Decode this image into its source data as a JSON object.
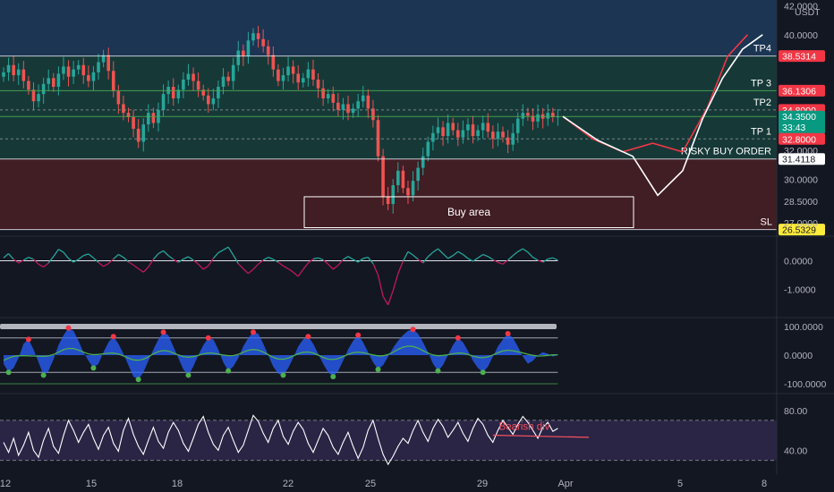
{
  "symbol_quote": "USDT",
  "chart_data": [
    {
      "type": "candlestick",
      "ylim": [
        26.2,
        42.4
      ],
      "ticks": [
        "42.0000",
        "40.0000",
        "30.0000",
        "28.5000",
        "27.0000"
      ],
      "tick_values": [
        42.0,
        40.0,
        30.0,
        28.5,
        27.0
      ],
      "x_labels": [
        "12",
        "15",
        "18",
        "22",
        "25",
        "29",
        "Apr",
        "5",
        "8"
      ],
      "zones": [
        {
          "name": "upper-zone",
          "from": 38.53,
          "to": 42.4,
          "color": "#1f3b5c"
        },
        {
          "name": "profit-zone",
          "from": 31.41,
          "to": 38.53,
          "color": "#17403c"
        },
        {
          "name": "loss-zone",
          "from": 26.53,
          "to": 31.41,
          "color": "#4a1e24"
        }
      ],
      "levels": [
        {
          "label": "TP4",
          "value": 38.5314,
          "tag": "38.5314",
          "tag_color": "#f23645",
          "line": "#e0e3eb"
        },
        {
          "label": "TP 3",
          "value": 36.1306,
          "tag": "36.1306",
          "tag_color": "#f23645",
          "line": "#4caf50"
        },
        {
          "label": "TP2",
          "value": 34.8,
          "tag": "34.8000",
          "tag_color": "#f23645",
          "line": "#8f8f8f"
        },
        {
          "label": "",
          "value": 34.35,
          "tag": "34.3500",
          "tag2": "33:43",
          "tag_color": "#089981",
          "line": "#4caf50"
        },
        {
          "label": "TP 1",
          "value": 32.8,
          "tag": "32.8000",
          "tag_color": "#f23645",
          "line": "#8f8f8f"
        },
        {
          "label": "RISKY BUY ORDER",
          "value": 31.4118,
          "tag": "31.4118",
          "tag_color": "#ffffff",
          "line": "#e0e3eb"
        },
        {
          "label": "SL",
          "value": 26.5329,
          "tag": "26.5329",
          "tag_color": "#ffeb3b",
          "line": "#e0e3eb"
        }
      ],
      "plain_ticks": [
        "32.0000"
      ],
      "buy_area": {
        "label": "Buy area",
        "from": 27.9,
        "to": 28.8
      },
      "close_prices": [
        37.4,
        37.9,
        37.2,
        37.6,
        36.8,
        36.2,
        35.4,
        35.9,
        36.6,
        37.0,
        36.4,
        37.3,
        37.8,
        37.1,
        37.6,
        37.9,
        37.2,
        36.8,
        37.4,
        38.1,
        38.6,
        37.5,
        36.1,
        35.2,
        34.6,
        34.3,
        33.5,
        32.6,
        33.8,
        34.6,
        33.9,
        34.8,
        35.9,
        36.4,
        35.6,
        36.2,
        36.9,
        37.3,
        36.8,
        36.2,
        35.8,
        35.2,
        35.6,
        36.4,
        37.1,
        36.8,
        37.9,
        38.9,
        38.5,
        39.6,
        40.1,
        39.7,
        39.2,
        38.6,
        37.6,
        36.8,
        37.2,
        37.8,
        37.3,
        36.7,
        37.0,
        37.6,
        36.9,
        36.3,
        35.6,
        35.9,
        35.3,
        34.8,
        35.2,
        34.6,
        34.9,
        35.4,
        35.8,
        34.9,
        34.1,
        31.6,
        28.8,
        28.3,
        29.6,
        30.6,
        29.4,
        28.9,
        29.9,
        30.8,
        31.6,
        32.6,
        33.2,
        33.6,
        33.0,
        33.9,
        33.4,
        32.9,
        33.4,
        33.8,
        33.0,
        33.4,
        33.9,
        33.3,
        32.8,
        33.3,
        32.9,
        32.4,
        33.2,
        34.2,
        34.6,
        34.4,
        34.0,
        34.5,
        34.2,
        34.6,
        34.3,
        34.35
      ],
      "forecast_paths": [
        {
          "name": "forecast-path-red",
          "color": "#f23645",
          "points": [
            [
              112,
              34.35
            ],
            [
              118,
              32.8
            ],
            [
              124,
              31.9
            ],
            [
              130,
              32.5
            ],
            [
              136,
              31.9
            ],
            [
              141,
              35.0
            ],
            [
              145,
              38.5
            ],
            [
              149,
              40.0
            ]
          ]
        },
        {
          "name": "forecast-path-white",
          "color": "#ffffff",
          "points": [
            [
              112,
              34.35
            ],
            [
              119,
              32.7
            ],
            [
              126,
              31.6
            ],
            [
              131,
              28.9
            ],
            [
              136,
              30.6
            ],
            [
              140,
              34.2
            ],
            [
              144,
              37.0
            ],
            [
              148,
              39.0
            ],
            [
              152,
              40.0
            ]
          ]
        }
      ]
    },
    {
      "type": "line",
      "ylim": [
        -1.9,
        0.8
      ],
      "ticks": [
        "0.0000",
        "-1.0000"
      ],
      "tick_values": [
        0,
        -1
      ],
      "values": [
        0.1,
        0.25,
        0.05,
        -0.08,
        0.02,
        0.12,
        0.05,
        -0.12,
        -0.22,
        -0.08,
        0.15,
        0.4,
        0.3,
        0.08,
        -0.05,
        0.05,
        0.18,
        0.24,
        0.1,
        -0.06,
        -0.2,
        -0.1,
        0.06,
        0.22,
        0.12,
        -0.04,
        -0.15,
        -0.28,
        -0.4,
        -0.22,
        0.05,
        0.25,
        0.35,
        0.18,
        0.05,
        -0.06,
        0.06,
        0.14,
        0.02,
        -0.12,
        -0.3,
        -0.18,
        0.08,
        0.28,
        0.38,
        0.48,
        0.2,
        -0.1,
        -0.28,
        -0.45,
        -0.3,
        -0.12,
        0.02,
        0.12,
        0.05,
        -0.05,
        -0.18,
        -0.28,
        -0.4,
        -0.55,
        -0.3,
        -0.08,
        0.06,
        0.1,
        0.03,
        -0.12,
        -0.3,
        -0.16,
        0.04,
        0.15,
        0.05,
        -0.05,
        0.08,
        0.12,
        -0.1,
        -0.5,
        -1.25,
        -1.55,
        -1.05,
        -0.45,
        -0.02,
        0.32,
        0.2,
        0.05,
        -0.08,
        0.14,
        0.3,
        0.42,
        0.25,
        0.08,
        0.18,
        0.32,
        0.22,
        0.08,
        -0.02,
        0.1,
        0.22,
        0.15,
        0.04,
        -0.06,
        -0.12,
        0.02,
        0.18,
        0.32,
        0.42,
        0.3,
        0.12,
        0.02,
        -0.05,
        0.06,
        0.1,
        0.02
      ]
    },
    {
      "type": "area",
      "ylim": [
        -125,
        125
      ],
      "ticks": [
        "100.0000",
        "0.0000",
        "-100.0000"
      ],
      "tick_values": [
        100,
        0,
        -100
      ],
      "values": [
        -30,
        -60,
        -45,
        -10,
        40,
        55,
        20,
        -25,
        -70,
        -55,
        -15,
        35,
        70,
        95,
        85,
        50,
        10,
        -20,
        -45,
        -30,
        10,
        45,
        65,
        40,
        5,
        -35,
        -75,
        -85,
        -60,
        -20,
        20,
        55,
        80,
        70,
        30,
        -10,
        -50,
        -70,
        -40,
        0,
        35,
        60,
        55,
        20,
        -25,
        -55,
        -40,
        -10,
        30,
        60,
        80,
        75,
        40,
        0,
        -40,
        -65,
        -70,
        -45,
        -10,
        30,
        55,
        65,
        40,
        5,
        -30,
        -60,
        -75,
        -55,
        -20,
        20,
        50,
        70,
        45,
        10,
        -25,
        -50,
        -35,
        -5,
        25,
        50,
        70,
        85,
        90,
        75,
        45,
        10,
        -30,
        -55,
        -35,
        0,
        35,
        60,
        45,
        15,
        -20,
        -45,
        -60,
        -40,
        -5,
        30,
        55,
        75,
        60,
        30,
        -5,
        -30,
        -20,
        0,
        10,
        5,
        -5,
        0
      ]
    },
    {
      "type": "line",
      "ylim": [
        18,
        95
      ],
      "ticks": [
        "80.00",
        "40.00"
      ],
      "tick_values": [
        80,
        40
      ],
      "values": [
        48,
        38,
        52,
        35,
        45,
        58,
        40,
        33,
        50,
        62,
        44,
        37,
        55,
        70,
        60,
        48,
        58,
        66,
        52,
        41,
        55,
        63,
        47,
        39,
        60,
        72,
        56,
        44,
        36,
        50,
        63,
        49,
        42,
        58,
        68,
        60,
        47,
        39,
        52,
        66,
        74,
        58,
        46,
        40,
        55,
        63,
        50,
        38,
        45,
        60,
        75,
        69,
        57,
        48,
        62,
        70,
        54,
        46,
        59,
        68,
        61,
        47,
        38,
        50,
        62,
        55,
        43,
        36,
        48,
        58,
        44,
        32,
        43,
        60,
        70,
        52,
        36,
        26,
        34,
        44,
        52,
        47,
        60,
        70,
        58,
        49,
        62,
        71,
        64,
        53,
        60,
        68,
        57,
        49,
        62,
        72,
        66,
        55,
        48,
        60,
        70,
        63,
        56,
        66,
        74,
        68,
        60,
        52,
        63,
        68,
        59,
        62
      ],
      "annotation": {
        "text": "Bearish div",
        "color": "#f7525f"
      }
    }
  ]
}
